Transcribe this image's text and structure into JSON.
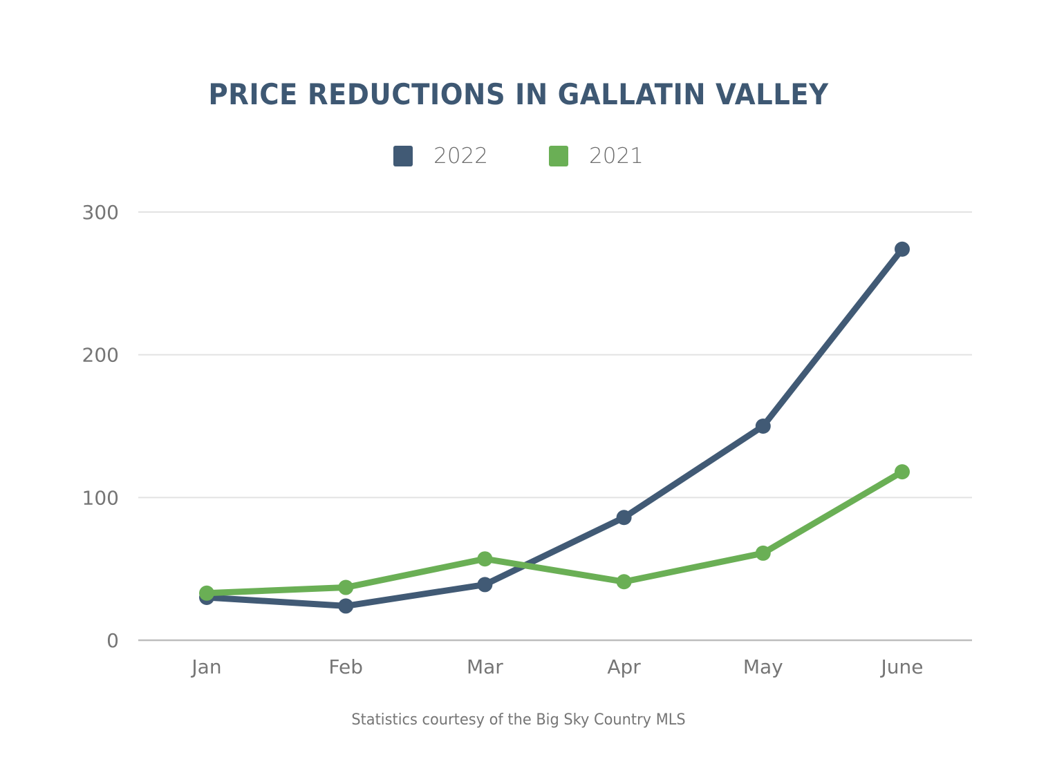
{
  "colors": {
    "title": "#3e5873",
    "series_2022": "#415a75",
    "series_2021": "#6aaf55",
    "grid": "#e2e2e2",
    "axis": "#bdbdbd"
  },
  "footnote": "Statistics courtesy of the Big Sky Country MLS",
  "chart_data": {
    "type": "line",
    "title": "PRICE REDUCTIONS IN GALLATIN VALLEY",
    "xlabel": "",
    "ylabel": "",
    "categories": [
      "Jan",
      "Feb",
      "Mar",
      "Apr",
      "May",
      "June"
    ],
    "series": [
      {
        "name": "2022",
        "color": "#415a75",
        "values": [
          30,
          24,
          39,
          86,
          150,
          274
        ]
      },
      {
        "name": "2021",
        "color": "#6aaf55",
        "values": [
          33,
          37,
          57,
          41,
          61,
          118
        ]
      }
    ],
    "ylim": [
      0,
      300
    ],
    "yticks": [
      0,
      100,
      200,
      300
    ],
    "grid": true,
    "legend": "top-center"
  }
}
